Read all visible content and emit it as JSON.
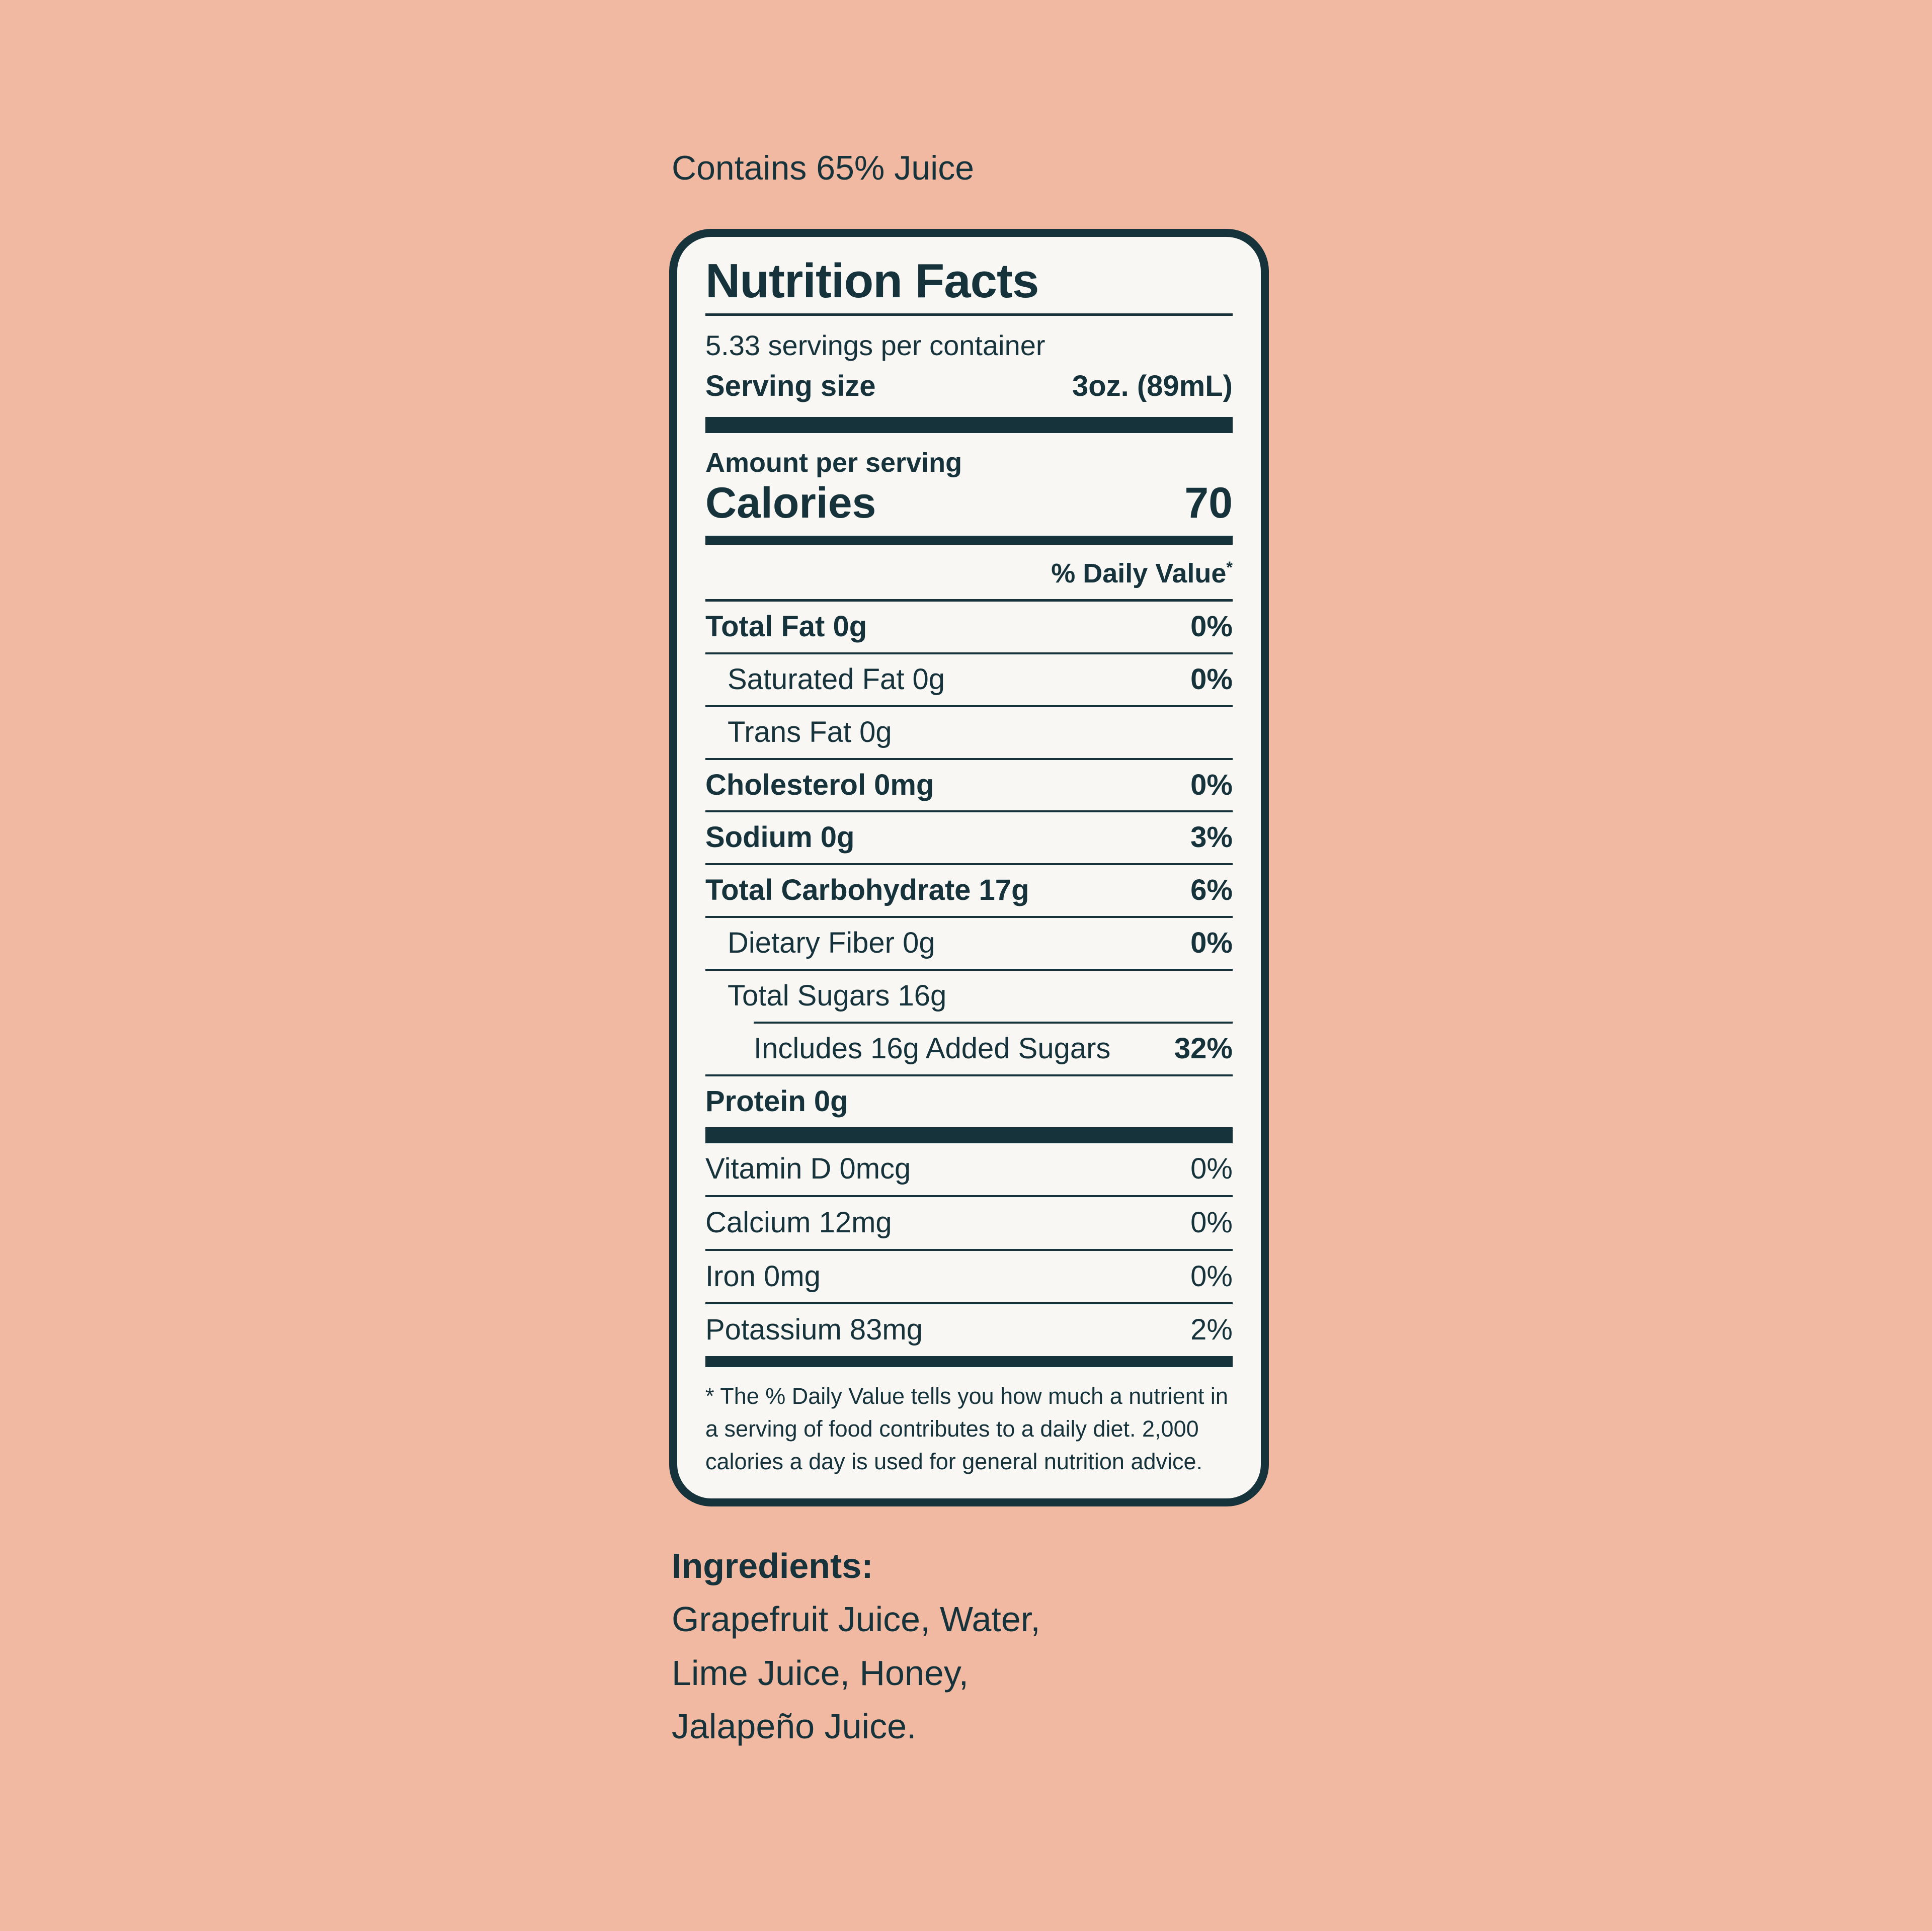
{
  "theme": {
    "background": "#F1B9A2",
    "ink": "#16323A",
    "panel_background": "#F8F7F4"
  },
  "claim": "Contains 65% Juice",
  "label": {
    "title": "Nutrition Facts",
    "servings_per_container": "5.33 servings per container",
    "serving_size_label": "Serving size",
    "serving_size_value": "3oz. (89mL)",
    "amount_per_serving": "Amount per serving",
    "calories_label": "Calories",
    "calories_value": "70",
    "daily_value_header": "% Daily Value",
    "daily_value_asterisk": "*",
    "nutrients": [
      {
        "name": "Total Fat 0g",
        "dv": "0%"
      },
      {
        "name": "Saturated Fat 0g",
        "dv": "0%"
      },
      {
        "name": "Trans Fat 0g",
        "dv": ""
      },
      {
        "name": "Cholesterol 0mg",
        "dv": "0%"
      },
      {
        "name": "Sodium 0g",
        "dv": "3%"
      },
      {
        "name": "Total Carbohydrate 17g",
        "dv": "6%"
      },
      {
        "name": "Dietary Fiber 0g",
        "dv": "0%"
      },
      {
        "name": "Total Sugars 16g",
        "dv": ""
      },
      {
        "name": "Includes 16g Added Sugars",
        "dv": "32%"
      },
      {
        "name": "Protein 0g",
        "dv": ""
      }
    ],
    "micronutrients": [
      {
        "name": "Vitamin D 0mcg",
        "dv": "0%"
      },
      {
        "name": "Calcium 12mg",
        "dv": "0%"
      },
      {
        "name": "Iron 0mg",
        "dv": "0%"
      },
      {
        "name": "Potassium 83mg",
        "dv": "2%"
      }
    ],
    "footnote": "* The % Daily Value tells you how much a nutrient in a serving of food contributes to a daily diet. 2,000 calories a day is used for general nutrition advice."
  },
  "ingredients": {
    "heading": "Ingredients:",
    "lines": [
      "Grapefruit Juice, Water,",
      "Lime Juice, Honey,",
      "Jalapeño Juice."
    ]
  }
}
